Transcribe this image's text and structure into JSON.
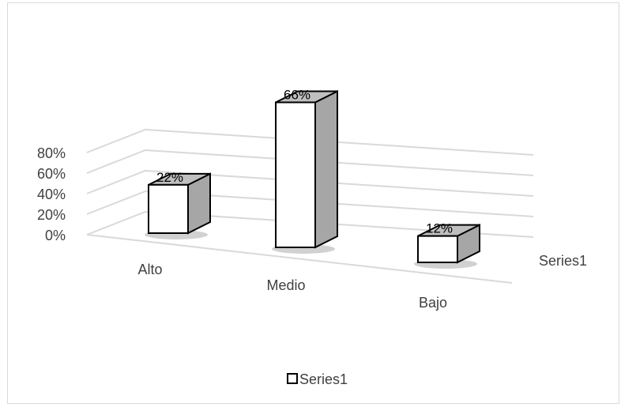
{
  "chart_data": {
    "type": "bar",
    "variant": "3d-column",
    "categories": [
      "Alto",
      "Medio",
      "Bajo"
    ],
    "series": [
      {
        "name": "Series1",
        "values": [
          22,
          66,
          12
        ]
      }
    ],
    "data_labels": [
      "22%",
      "66%",
      "12%"
    ],
    "y_ticks": [
      "0%",
      "20%",
      "40%",
      "60%",
      "80%"
    ],
    "ylim": [
      0,
      80
    ],
    "depth_axis_label": "Series1",
    "grid": true,
    "legend": {
      "position": "bottom",
      "items": [
        "Series1"
      ]
    },
    "colors": {
      "bar_front": "#ffffff",
      "bar_side": "#a6a6a6",
      "bar_top": "#bfbfbf",
      "stroke": "#000000",
      "grid": "#d9d9d9"
    }
  }
}
